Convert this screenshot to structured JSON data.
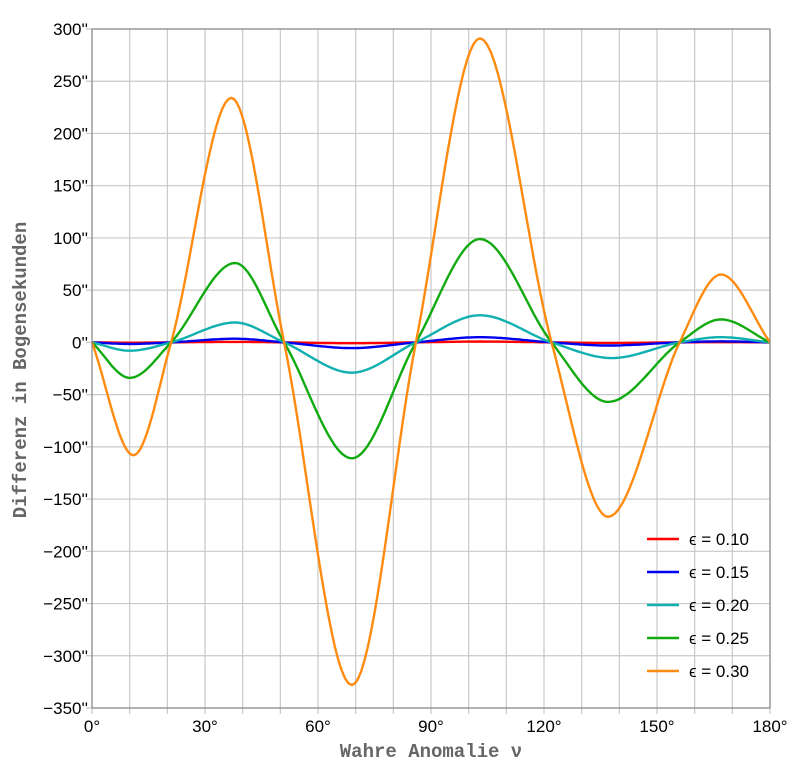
{
  "chart_data": {
    "type": "line",
    "xlabel": "Wahre Anomalie ν",
    "ylabel": "Differenz in Bogensekunden",
    "xlim": [
      0,
      180
    ],
    "ylim": [
      -350,
      300
    ],
    "xticks": [
      0,
      30,
      60,
      90,
      120,
      150,
      180
    ],
    "xtick_labels": [
      "0°",
      "30°",
      "60°",
      "90°",
      "120°",
      "150°",
      "180°"
    ],
    "yticks": [
      300,
      250,
      200,
      150,
      100,
      50,
      0,
      -50,
      -100,
      -150,
      -200,
      -250,
      -300,
      -350
    ],
    "ytick_labels": [
      "300''",
      "250''",
      "200''",
      "150''",
      "100''",
      "50''",
      "0''",
      "−50''",
      "−100''",
      "−150''",
      "−200''",
      "−250''",
      "−300''",
      "−350''"
    ],
    "grid": true,
    "x_minor_grid_step": 10,
    "legend_position": "bottom-right",
    "series": [
      {
        "name": "ϵ = 0.10",
        "color": "#ff0000",
        "x": [
          0,
          10,
          21,
          38,
          51,
          69,
          86,
          103,
          122,
          137,
          156,
          167,
          180
        ],
        "y": [
          0,
          -0.3,
          0,
          0.5,
          0,
          -0.8,
          0,
          0.8,
          0,
          -0.5,
          0,
          0.2,
          0
        ]
      },
      {
        "name": "ϵ = 0.15",
        "color": "#0000ee",
        "x": [
          0,
          10,
          21,
          38,
          51,
          69,
          86,
          103,
          122,
          137,
          156,
          167,
          180
        ],
        "y": [
          0,
          -1.5,
          0,
          3.5,
          0,
          -5.5,
          0,
          5,
          0,
          -3,
          0,
          1,
          0
        ]
      },
      {
        "name": "ϵ = 0.20",
        "color": "#11b0b0",
        "x": [
          0,
          10,
          21,
          38,
          51,
          69,
          86,
          103,
          122,
          138,
          156,
          167,
          180
        ],
        "y": [
          0,
          -8,
          0,
          19,
          0,
          -29,
          0,
          26,
          0,
          -15,
          0,
          5,
          0
        ]
      },
      {
        "name": "ϵ = 0.25",
        "color": "#11aa11",
        "x": [
          0,
          10,
          21,
          38,
          51,
          69,
          86,
          103,
          122,
          137,
          156,
          167,
          180
        ],
        "y": [
          0,
          -34,
          0,
          76,
          0,
          -111,
          0,
          99,
          0,
          -57,
          0,
          22,
          0
        ]
      },
      {
        "name": "ϵ = 0.30",
        "color": "#ff8c11",
        "x": [
          0,
          11,
          21,
          37,
          51,
          69,
          86,
          103,
          122,
          137,
          156,
          167,
          180
        ],
        "y": [
          0,
          -108,
          0,
          234,
          0,
          -328,
          0,
          291,
          0,
          -167,
          0,
          65,
          0
        ]
      }
    ]
  }
}
